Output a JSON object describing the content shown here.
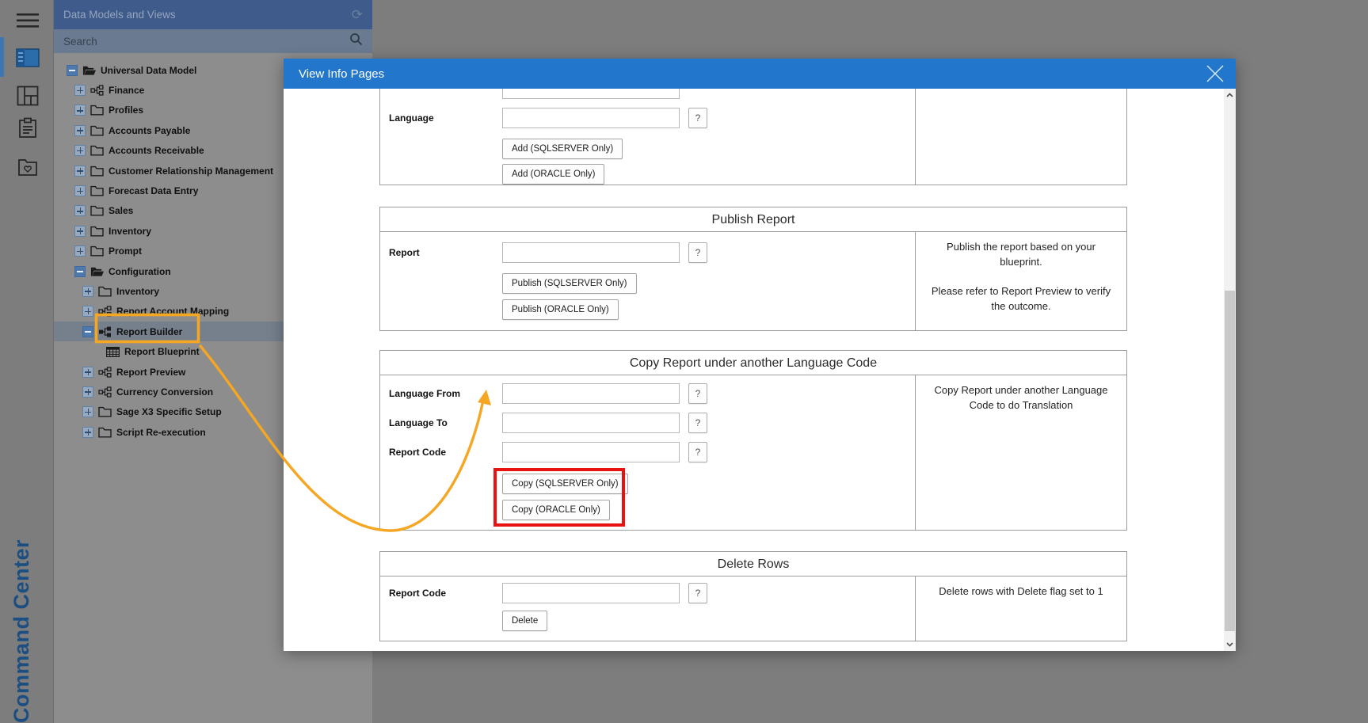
{
  "rail": {
    "vertical_label": "Command Center",
    "icons": [
      "hamburger-menu",
      "data-models",
      "layout-dashboard",
      "clipboard",
      "favorites-folder"
    ]
  },
  "tree_panel": {
    "title": "Data Models and Views",
    "search_placeholder": "Search",
    "refresh_icon": "refresh-icon",
    "search_icon": "magnifier-icon",
    "items": [
      {
        "label": "Universal Data Model",
        "level": 0,
        "expander": "minus",
        "icon": "folder-open"
      },
      {
        "label": "Finance",
        "level": 1,
        "expander": "plus",
        "icon": "network"
      },
      {
        "label": "Profiles",
        "level": 1,
        "expander": "plus",
        "icon": "folder"
      },
      {
        "label": "Accounts Payable",
        "level": 1,
        "expander": "plus",
        "icon": "folder"
      },
      {
        "label": "Accounts Receivable",
        "level": 1,
        "expander": "plus",
        "icon": "folder"
      },
      {
        "label": "Customer Relationship Management",
        "level": 1,
        "expander": "plus",
        "icon": "folder"
      },
      {
        "label": "Forecast Data Entry",
        "level": 1,
        "expander": "plus",
        "icon": "folder"
      },
      {
        "label": "Sales",
        "level": 1,
        "expander": "plus",
        "icon": "folder"
      },
      {
        "label": "Inventory",
        "level": 1,
        "expander": "plus",
        "icon": "folder"
      },
      {
        "label": "Prompt",
        "level": 1,
        "expander": "plus",
        "icon": "folder"
      },
      {
        "label": "Configuration",
        "level": 1,
        "expander": "minus",
        "icon": "folder-open"
      },
      {
        "label": "Inventory",
        "level": 2,
        "expander": "plus",
        "icon": "folder"
      },
      {
        "label": "Report Account Mapping",
        "level": 2,
        "expander": "plus",
        "icon": "network"
      },
      {
        "label": "Report Builder",
        "level": 2,
        "expander": "minus",
        "icon": "network-filled",
        "selected": true
      },
      {
        "label": "Report Blueprint",
        "level": 3,
        "expander": "none",
        "icon": "grid"
      },
      {
        "label": "Report Preview",
        "level": 2,
        "expander": "plus",
        "icon": "network"
      },
      {
        "label": "Currency Conversion",
        "level": 2,
        "expander": "plus",
        "icon": "network"
      },
      {
        "label": "Sage X3 Specific Setup",
        "level": 2,
        "expander": "plus",
        "icon": "folder"
      },
      {
        "label": "Script Re-execution",
        "level": 2,
        "expander": "plus",
        "icon": "folder"
      }
    ]
  },
  "modal": {
    "title": "View Info Pages",
    "close_icon": "close-icon",
    "question_label": "?",
    "sections": [
      {
        "rows": [
          {
            "label": "Language"
          }
        ],
        "buttons": [
          "Add (SQLSERVER Only)",
          "Add (ORACLE Only)"
        ],
        "help": []
      },
      {
        "title": "Publish Report",
        "rows": [
          {
            "label": "Report"
          }
        ],
        "buttons": [
          "Publish (SQLSERVER Only)",
          "Publish (ORACLE Only)"
        ],
        "help": [
          "Publish the report based on your blueprint.",
          "Please refer to Report Preview to verify the outcome."
        ]
      },
      {
        "title": "Copy Report under another Language Code",
        "rows": [
          {
            "label": "Language From"
          },
          {
            "label": "Language To"
          },
          {
            "label": "Report Code"
          }
        ],
        "buttons": [
          "Copy (SQLSERVER Only)",
          "Copy (ORACLE Only)"
        ],
        "help": [
          "Copy Report under another Language Code to do Translation"
        ],
        "highlighted_buttons": true
      },
      {
        "title": "Delete Rows",
        "rows": [
          {
            "label": "Report Code"
          }
        ],
        "buttons": [
          "Delete"
        ],
        "help": [
          "Delete rows with Delete flag set to 1"
        ]
      }
    ]
  },
  "annotations": {
    "arrow_color": "#f5a623",
    "highlight_box_color": "#e81212",
    "boxed_tree_item": "Report Builder",
    "arrow_target": "Language From input"
  },
  "colors": {
    "modal_header": "#2277cc",
    "backdrop": "#7d7d7d",
    "tree_header": "#3e5b8b",
    "rail_selected": "#2b6cab"
  }
}
